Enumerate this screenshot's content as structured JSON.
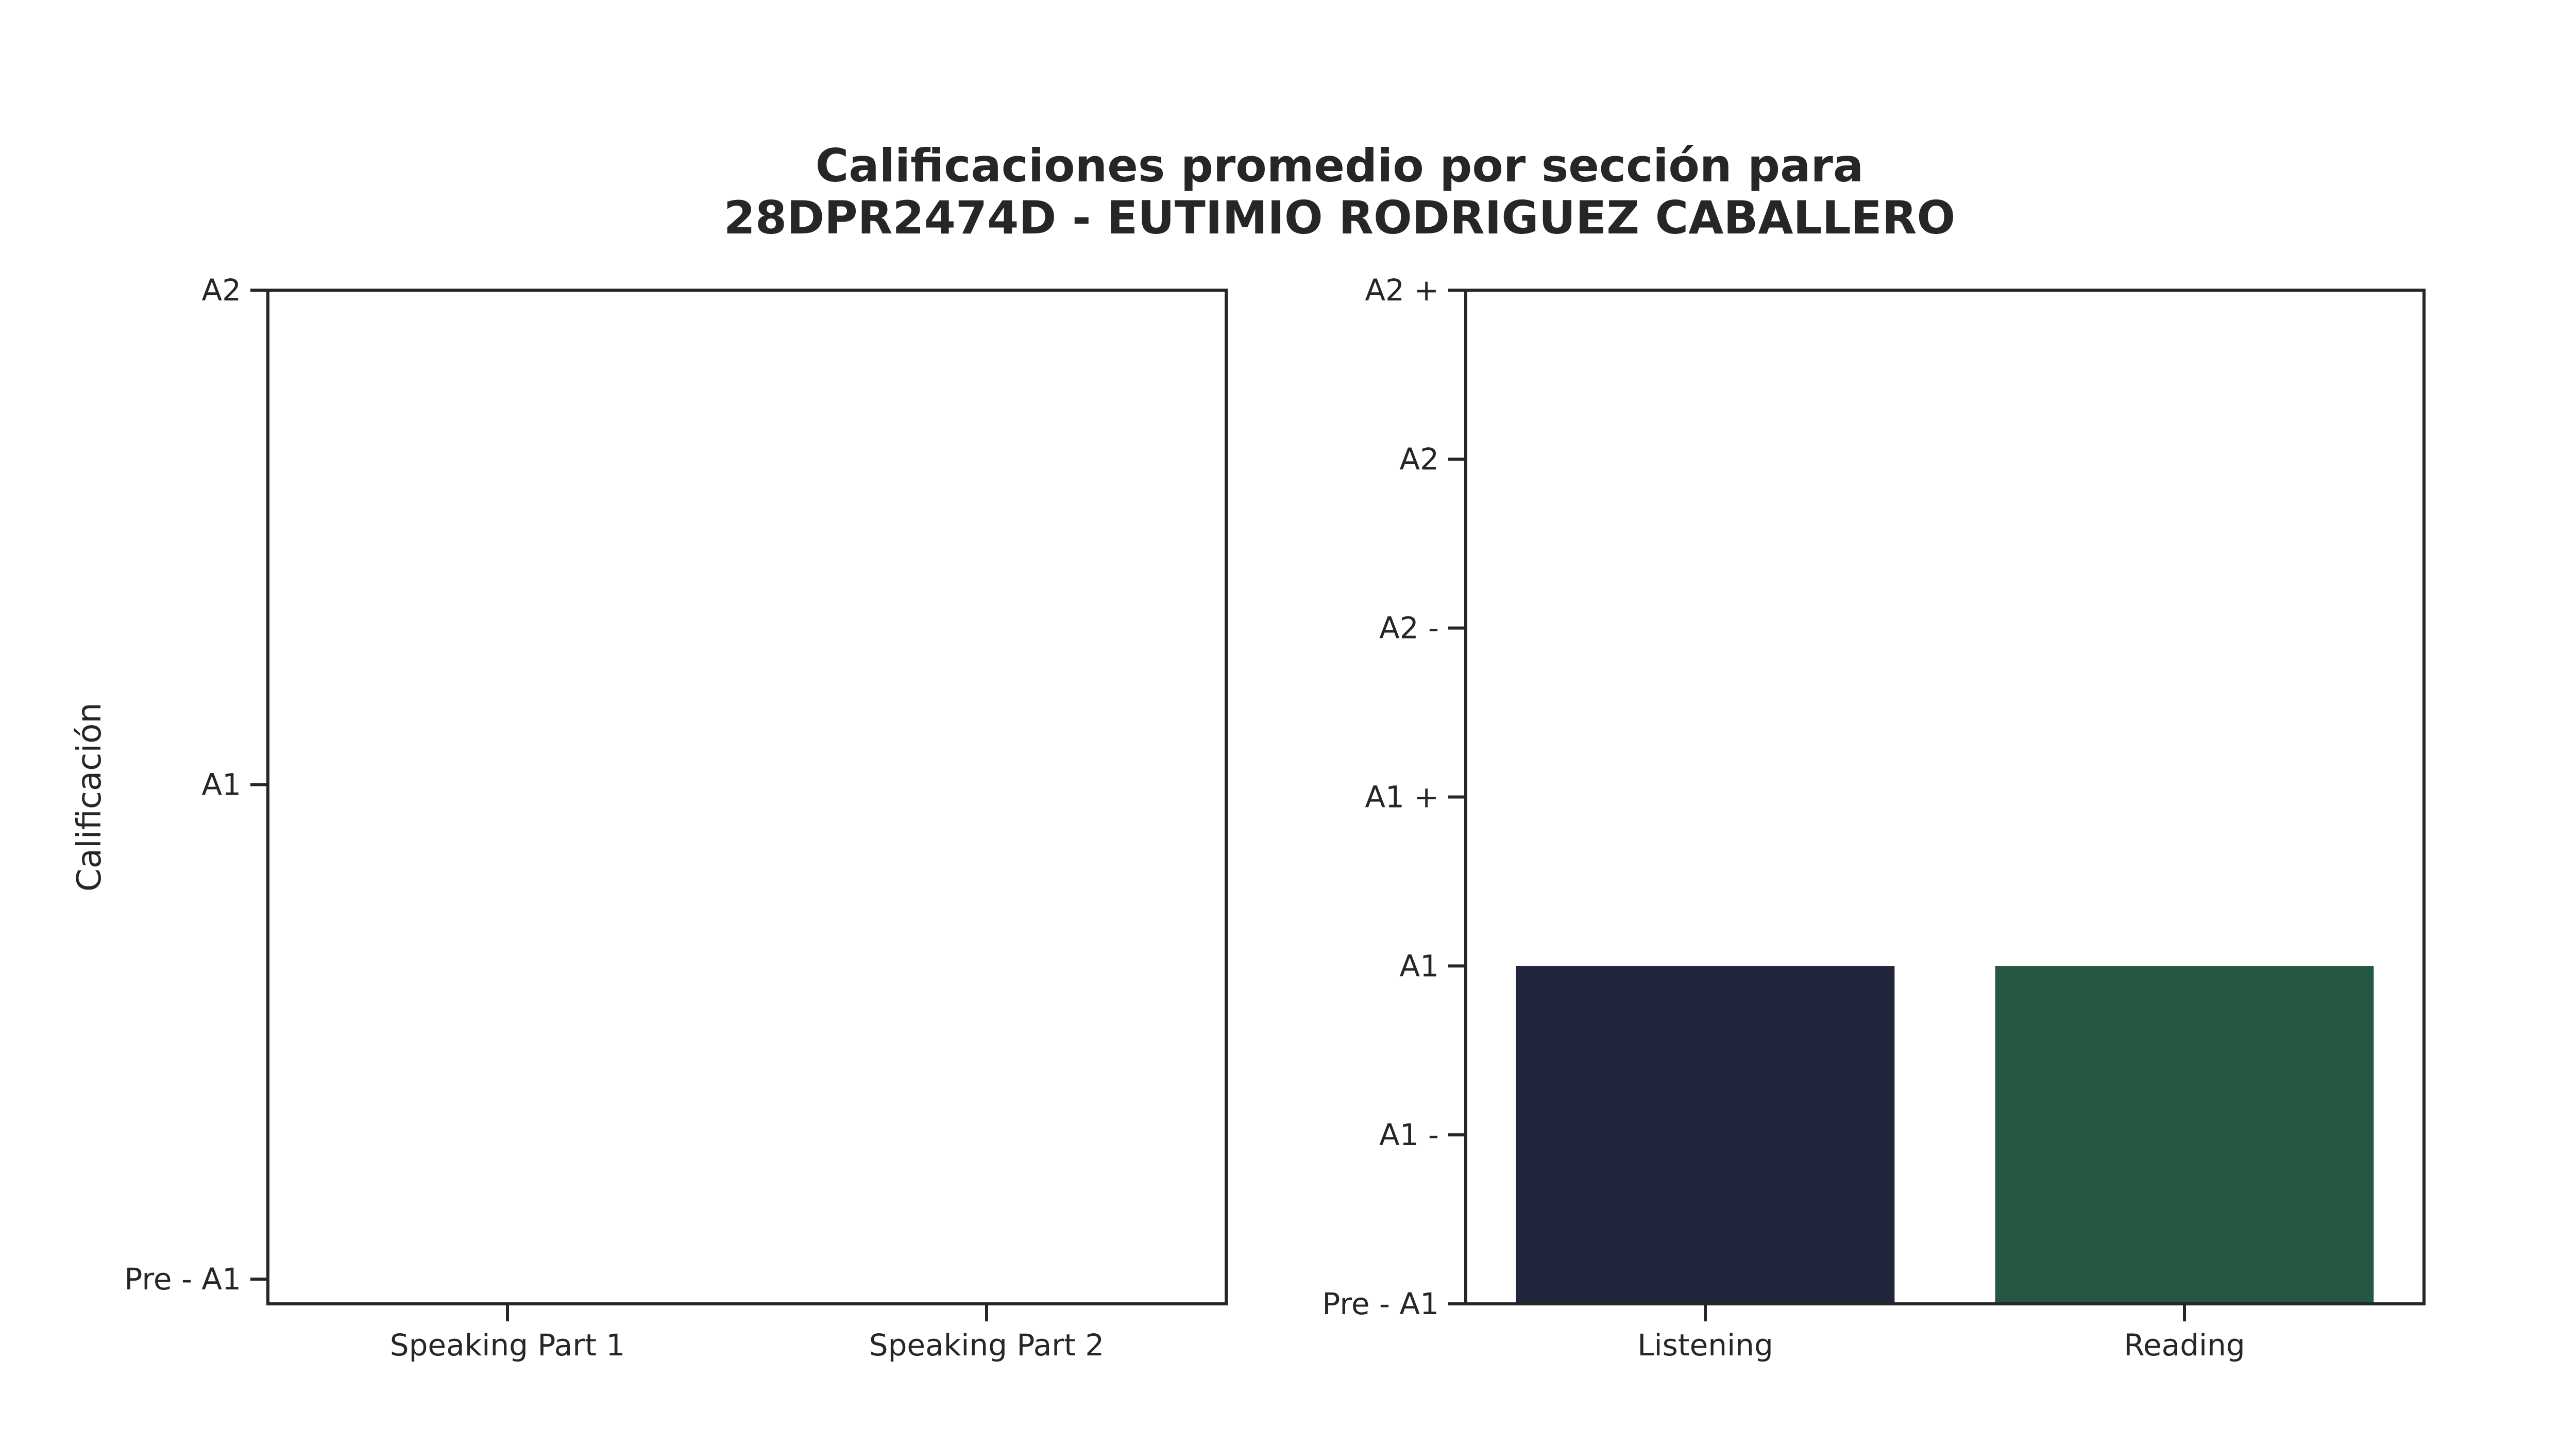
{
  "title_lines": [
    "Calificaciones promedio por sección para",
    "28DPR2474D - EUTIMIO RODRIGUEZ CABALLERO"
  ],
  "chart_data": [
    {
      "type": "bar",
      "panel": "left",
      "ylabel": "Calificación",
      "xlabel": "",
      "categories": [
        "Speaking Part 1",
        "Speaking Part 2"
      ],
      "values": [
        null,
        null
      ],
      "bar_colors": [],
      "yticks": [
        {
          "value": 0,
          "label": "Pre - A1"
        },
        {
          "value": 1,
          "label": "A1"
        },
        {
          "value": 2,
          "label": "A2"
        }
      ],
      "ylim": [
        -0.05,
        2.0
      ],
      "grid": false
    },
    {
      "type": "bar",
      "panel": "right",
      "ylabel": "",
      "xlabel": "",
      "categories": [
        "Listening",
        "Reading"
      ],
      "values": [
        2,
        2
      ],
      "bar_colors": [
        "#20253c",
        "#245843"
      ],
      "yticks": [
        {
          "value": 0,
          "label": "Pre - A1"
        },
        {
          "value": 1,
          "label": "A1 -"
        },
        {
          "value": 2,
          "label": "A1"
        },
        {
          "value": 3,
          "label": "A1 +"
        },
        {
          "value": 4,
          "label": "A2 -"
        },
        {
          "value": 5,
          "label": "A2"
        },
        {
          "value": 6,
          "label": "A2 +"
        }
      ],
      "ylim": [
        0,
        6
      ],
      "grid": false
    }
  ]
}
